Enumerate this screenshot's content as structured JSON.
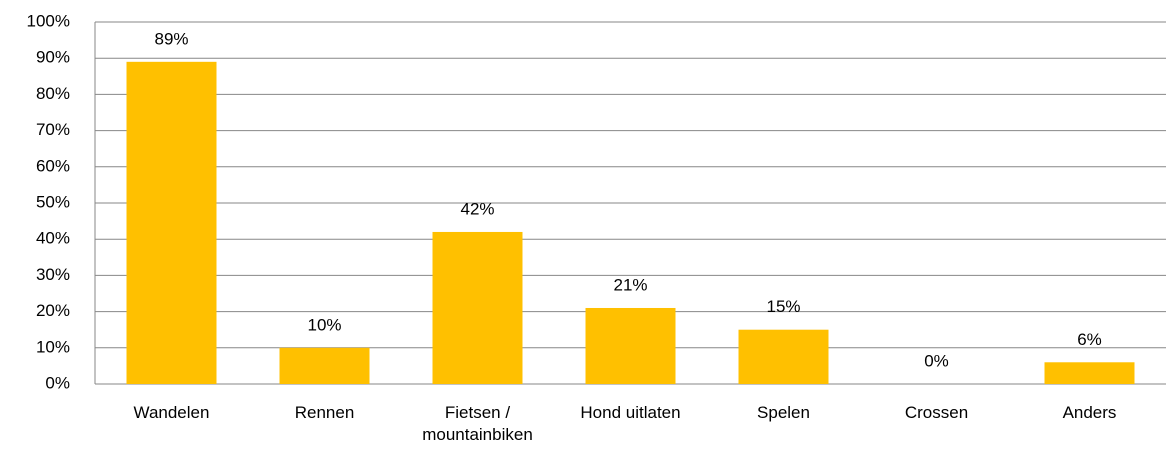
{
  "chart_data": {
    "type": "bar",
    "categories": [
      "Wandelen",
      "Rennen",
      "Fietsen / mountainbiken",
      "Hond uitlaten",
      "Spelen",
      "Crossen",
      "Anders"
    ],
    "values": [
      89,
      10,
      42,
      21,
      15,
      0,
      6
    ],
    "value_labels": [
      "89%",
      "10%",
      "42%",
      "21%",
      "15%",
      "0%",
      "6%"
    ],
    "color": "#ffc000",
    "ylim": [
      0,
      100
    ],
    "yticks": [
      {
        "value": 0,
        "label": "0%"
      },
      {
        "value": 10,
        "label": "10%"
      },
      {
        "value": 20,
        "label": "20%"
      },
      {
        "value": 30,
        "label": "30%"
      },
      {
        "value": 40,
        "label": "40%"
      },
      {
        "value": 50,
        "label": "50%"
      },
      {
        "value": 60,
        "label": "60%"
      },
      {
        "value": 70,
        "label": "70%"
      },
      {
        "value": 80,
        "label": "80%"
      },
      {
        "value": 90,
        "label": "90%"
      },
      {
        "value": 100,
        "label": "100%"
      }
    ],
    "grid": true
  }
}
